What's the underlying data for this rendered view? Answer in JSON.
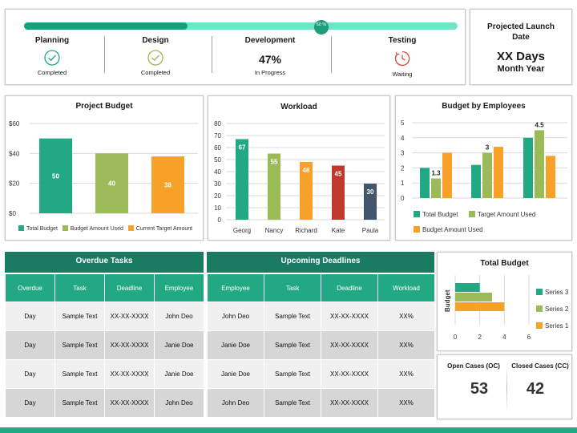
{
  "progress": {
    "percent": 60,
    "knob_text": "60 %",
    "phases": [
      {
        "name": "Planning",
        "status": "Completed",
        "icon": "check-circle-icon"
      },
      {
        "name": "Design",
        "status": "Completed",
        "icon": "check-circle-icon"
      },
      {
        "name": "Development",
        "value": "47%",
        "status": "In Progress"
      },
      {
        "name": "Testing",
        "status": "Waiting",
        "icon": "clock-icon"
      }
    ]
  },
  "launch": {
    "label_line1": "Projected Launch",
    "label_line2": "Date",
    "value": "XX Days",
    "sub": "Month Year"
  },
  "colors": {
    "teal": "#23a884",
    "dark_teal": "#1a7a62",
    "green": "#9bbb59",
    "orange": "#f7a128",
    "red": "#c0392b",
    "slate": "#44546a"
  },
  "chart_data": [
    {
      "type": "bar",
      "title": "Project Budget",
      "categories": [
        "Total Budget",
        "Budget Amount Used",
        "Current Target Amount"
      ],
      "values": [
        50,
        40,
        38
      ],
      "colors": [
        "#23a884",
        "#9bbb59",
        "#f7a128"
      ],
      "yticks": [
        "$0",
        "$20",
        "$40",
        "$60"
      ],
      "ylim": [
        0,
        60
      ],
      "legend": [
        "Total Budget",
        "Budget Amount Used",
        "Current Target Amount"
      ]
    },
    {
      "type": "bar",
      "title": "Workload",
      "categories": [
        "Georg",
        "Nancy",
        "Richard",
        "Kate",
        "Paula"
      ],
      "values": [
        67,
        55,
        48,
        45,
        30
      ],
      "colors": [
        "#23a884",
        "#9bbb59",
        "#f7a128",
        "#c0392b",
        "#44546a"
      ],
      "yticks": [
        "0",
        "10",
        "20",
        "30",
        "40",
        "50",
        "60",
        "70",
        "80"
      ],
      "ylim": [
        0,
        80
      ]
    },
    {
      "type": "bar",
      "title": "Budget by Employees",
      "groups": 3,
      "series": [
        {
          "name": "Total Budget",
          "values": [
            2.0,
            2.2,
            4.0
          ],
          "color": "#23a884"
        },
        {
          "name": "Target Amount Used",
          "values": [
            1.3,
            3.0,
            4.5
          ],
          "color": "#9bbb59"
        },
        {
          "name": "Budget Amount Used",
          "values": [
            3.0,
            3.4,
            2.8
          ],
          "color": "#f7a128"
        }
      ],
      "data_labels": [
        "1.3",
        "3",
        "4.5"
      ],
      "yticks": [
        "0",
        "1",
        "2",
        "3",
        "4",
        "5"
      ],
      "ylim": [
        0,
        5
      ]
    },
    {
      "type": "bar",
      "orientation": "horizontal",
      "title": "Total Budget",
      "ylabel": "Budget",
      "series": [
        {
          "name": "Series 3",
          "value": 2,
          "color": "#23a884"
        },
        {
          "name": "Series 2",
          "value": 3,
          "color": "#9bbb59"
        },
        {
          "name": "Series 1",
          "value": 4,
          "color": "#f7a128"
        }
      ],
      "xticks": [
        "0",
        "2",
        "4",
        "6"
      ],
      "xlim": [
        0,
        6
      ]
    }
  ],
  "overdue": {
    "title": "Overdue Tasks",
    "headers": [
      "Overdue",
      "Task",
      "Deadline",
      "Employee"
    ],
    "rows": [
      [
        "Day",
        "Sample Text",
        "XX-XX-XXXX",
        "John Deo"
      ],
      [
        "Day",
        "Sample Text",
        "XX-XX-XXXX",
        "Janie Doe"
      ],
      [
        "Day",
        "Sample Text",
        "XX-XX-XXXX",
        "Janie Doe"
      ],
      [
        "Day",
        "Sample Text",
        "XX-XX-XXXX",
        "John Deo"
      ]
    ]
  },
  "upcoming": {
    "title": "Upcoming Deadlines",
    "headers": [
      "Employee",
      "Task",
      "Deadline",
      "Workload"
    ],
    "rows": [
      [
        "John Deo",
        "Sample Text",
        "XX-XX-XXXX",
        "XX%"
      ],
      [
        "Janie Doe",
        "Sample Text",
        "XX-XX-XXXX",
        "XX%"
      ],
      [
        "Janie Doe",
        "Sample Text",
        "XX-XX-XXXX",
        "XX%"
      ],
      [
        "John Deo",
        "Sample Text",
        "XX-XX-XXXX",
        "XX%"
      ]
    ]
  },
  "cases": {
    "open_label": "Open Cases (OC)",
    "open_value": "53",
    "closed_label": "Closed Cases (CC)",
    "closed_value": "42"
  }
}
